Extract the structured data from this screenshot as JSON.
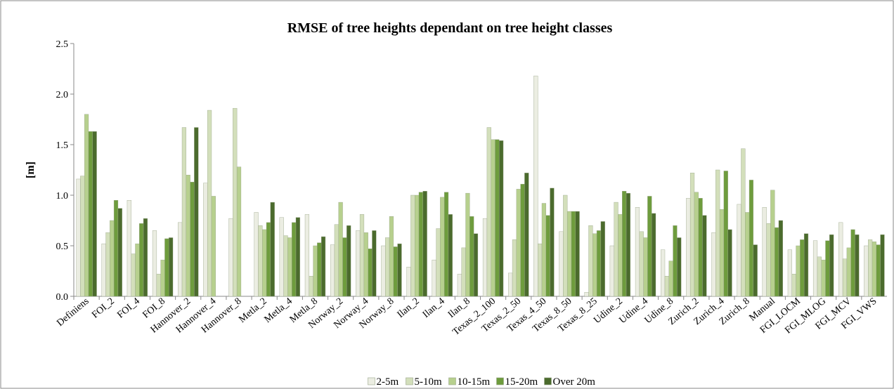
{
  "chart_data": {
    "type": "bar",
    "title": "RMSE of tree heights dependant on tree height classes",
    "ylabel": "[m]",
    "categories": [
      "Definiens",
      "FOI_2",
      "FOI_4",
      "FOI_8",
      "Hannover_2",
      "Hannover_4",
      "Hannover_8",
      "Metla_2",
      "Metla_4",
      "Metla_8",
      "Norway_2",
      "Norway_4",
      "Norway_8",
      "Ilan_2",
      "Ilan_4",
      "Ilan_8",
      "Texas_2_100",
      "Texas_2_50",
      "Texas_4_50",
      "Texas_8_50",
      "Texas_8_25",
      "Udine_2",
      "Udine_4",
      "Udine_8",
      "Zurich_2",
      "Zurich_4",
      "Zurich_8",
      "Manual",
      "FGI_LOCM",
      "FGI_MLOG",
      "FGI_MCV",
      "FGI_VWS"
    ],
    "series": [
      {
        "name": "2-5m",
        "color": "#ebede2",
        "values": [
          1.16,
          0.52,
          0.95,
          0.65,
          0.73,
          1.12,
          0.77,
          0.83,
          0.78,
          0.81,
          0.51,
          0.65,
          0.5,
          0.29,
          0.36,
          0.22,
          0.77,
          0.23,
          2.18,
          0.64,
          0.04,
          0.5,
          0.88,
          0.46,
          0.97,
          0.63,
          0.91,
          0.88,
          0.46,
          0.55,
          0.73,
          0.5
        ]
      },
      {
        "name": "5-10m",
        "color": "#d3dfbb",
        "values": [
          1.19,
          0.63,
          0.42,
          0.22,
          1.67,
          1.84,
          1.86,
          0.7,
          0.6,
          0.2,
          0.71,
          0.81,
          0.58,
          1.0,
          0.67,
          0.48,
          1.67,
          0.56,
          0.52,
          1.0,
          0.7,
          0.93,
          0.64,
          0.2,
          1.22,
          1.25,
          1.46,
          0.72,
          0.22,
          0.39,
          0.37,
          0.56
        ]
      },
      {
        "name": "10-15m",
        "color": "#b7d08e",
        "values": [
          1.8,
          0.75,
          0.52,
          0.36,
          1.2,
          0.99,
          1.28,
          0.66,
          0.58,
          0.5,
          0.93,
          0.63,
          0.79,
          1.0,
          0.98,
          1.02,
          1.55,
          1.06,
          0.92,
          0.84,
          0.62,
          0.81,
          0.58,
          0.35,
          1.03,
          0.86,
          0.83,
          1.05,
          0.5,
          0.36,
          0.48,
          0.54
        ]
      },
      {
        "name": "15-20m",
        "color": "#6e9c3d",
        "values": [
          1.63,
          0.95,
          0.72,
          0.57,
          1.13,
          null,
          null,
          0.73,
          0.73,
          0.53,
          0.58,
          0.47,
          0.49,
          1.03,
          1.03,
          0.79,
          1.55,
          1.11,
          0.8,
          0.84,
          0.65,
          1.04,
          0.99,
          0.7,
          0.97,
          1.24,
          1.15,
          0.68,
          0.56,
          0.55,
          0.66,
          0.51
        ]
      },
      {
        "name": "Over 20m",
        "color": "#4b6b2d",
        "values": [
          1.63,
          0.87,
          0.77,
          0.58,
          1.67,
          null,
          null,
          0.93,
          0.78,
          0.59,
          0.7,
          0.65,
          0.52,
          1.04,
          0.81,
          0.62,
          1.54,
          1.22,
          1.07,
          0.84,
          0.74,
          1.02,
          0.82,
          0.58,
          0.8,
          0.66,
          0.51,
          0.75,
          0.62,
          0.61,
          0.61,
          0.61
        ]
      }
    ],
    "ylim": [
      0,
      2.5
    ],
    "yticks": [
      {
        "value": 0,
        "label": "0.0"
      },
      {
        "value": 0.5,
        "label": "0.5"
      },
      {
        "value": 1,
        "label": "1.0"
      },
      {
        "value": 1.5,
        "label": "1.5"
      },
      {
        "value": 2,
        "label": "2.0"
      },
      {
        "value": 2.5,
        "label": "2.5"
      }
    ],
    "grid": false
  }
}
